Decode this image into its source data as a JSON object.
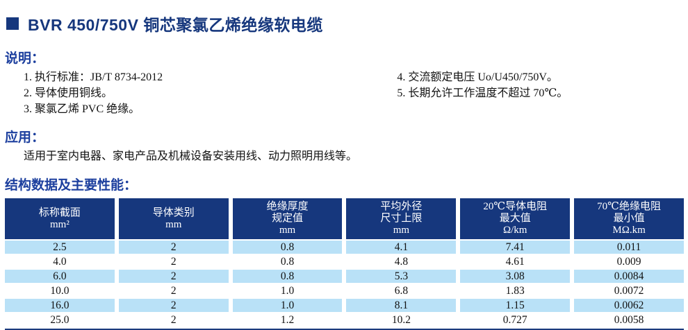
{
  "title": "BVR 450/750V 铜芯聚氯乙烯绝缘软电缆",
  "colors": {
    "navy": "#16377d",
    "heading_blue": "#1c3f9e",
    "row_highlight_blue": "#b9e1f7"
  },
  "description": {
    "heading": "说明：",
    "items_left": [
      "1. 执行标准：JB/T 8734-2012",
      "2. 导体使用铜线。",
      "3. 聚氯乙烯 PVC 绝缘。"
    ],
    "items_right": [
      "4. 交流额定电压 Uo/U450/750V。",
      "5. 长期允许工作温度不超过 70℃。"
    ]
  },
  "application": {
    "heading": "应用：",
    "text": "适用于室内电器、家电产品及机械设备安装用线、动力照明用线等。"
  },
  "table": {
    "heading": "结构数据及主要性能：",
    "headers": [
      "标称截面\nmm²",
      "导体类别\nmm",
      "绝缘厚度\n规定值\nmm",
      "平均外径\n尺寸上限\nmm",
      "20℃导体电阻\n最大值\nΩ/km",
      "70℃绝缘电阻\n最小值\nMΩ.km"
    ],
    "rows": [
      [
        "2.5",
        "2",
        "0.8",
        "4.1",
        "7.41",
        "0.011"
      ],
      [
        "4.0",
        "2",
        "0.8",
        "4.8",
        "4.61",
        "0.009"
      ],
      [
        "6.0",
        "2",
        "0.8",
        "5.3",
        "3.08",
        "0.0084"
      ],
      [
        "10.0",
        "2",
        "1.0",
        "6.8",
        "1.83",
        "0.0072"
      ],
      [
        "16.0",
        "2",
        "1.0",
        "8.1",
        "1.15",
        "0.0062"
      ],
      [
        "25.0",
        "2",
        "1.2",
        "10.2",
        "0.727",
        "0.0058"
      ]
    ]
  }
}
